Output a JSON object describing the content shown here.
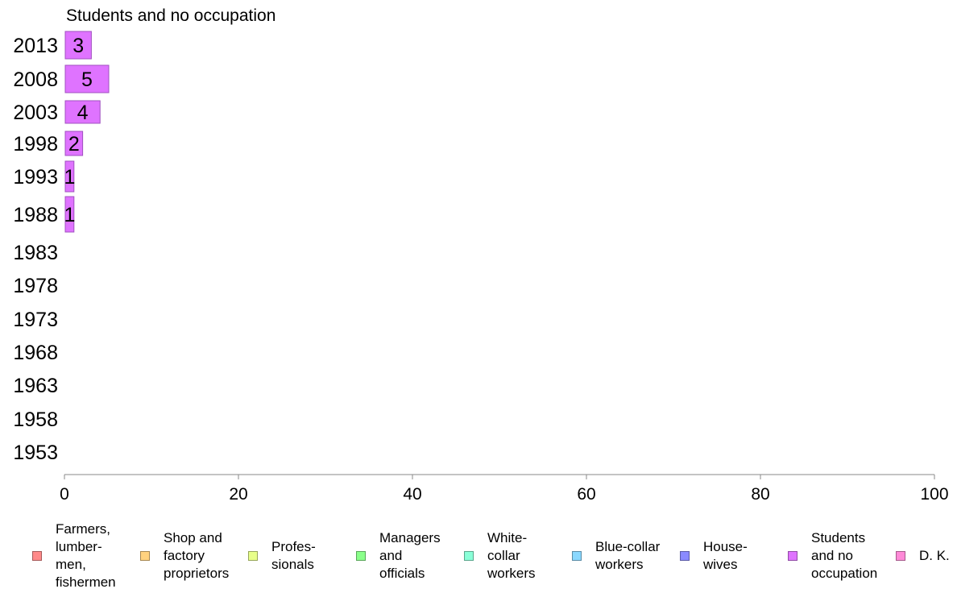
{
  "chart_data": {
    "type": "bar",
    "orientation": "horizontal",
    "title": "Students and no occupation",
    "categories": [
      "2013",
      "2008",
      "2003",
      "1998",
      "1993",
      "1988",
      "1983",
      "1978",
      "1973",
      "1968",
      "1963",
      "1958",
      "1953"
    ],
    "series": [
      {
        "name": "Students and no occupation",
        "color": "#df73ff",
        "values": [
          3,
          5,
          4,
          2,
          1,
          1,
          null,
          null,
          null,
          null,
          null,
          null,
          null
        ]
      }
    ],
    "data_labels": [
      "3",
      "5",
      "4",
      "2",
      "1",
      "1",
      "",
      "",
      "",
      "",
      "",
      "",
      ""
    ],
    "xlim": [
      0,
      100
    ],
    "xticks": [
      0,
      20,
      40,
      60,
      80,
      100
    ],
    "xtick_labels": [
      "0",
      "20",
      "40",
      "60",
      "80",
      "100"
    ],
    "grid": false,
    "legend_position": "bottom"
  },
  "legend": {
    "items": [
      {
        "label": "Farmers,\nlumber-\nmen,\nfishermen",
        "color": "#ff8a8a"
      },
      {
        "label": "Shop and\nfactory\nproprietors",
        "color": "#ffd27f"
      },
      {
        "label": "Profes-\nsionals",
        "color": "#e8ff8a"
      },
      {
        "label": "Managers\nand\nofficials",
        "color": "#8aff8a"
      },
      {
        "label": "White-\ncollar\nworkers",
        "color": "#8affd8"
      },
      {
        "label": "Blue-collar\nworkers",
        "color": "#8ad8ff"
      },
      {
        "label": "House-\nwives",
        "color": "#8a8aff"
      },
      {
        "label": "Students\nand no\noccupation",
        "color": "#df73ff"
      },
      {
        "label": "D. K.",
        "color": "#ff8ad8"
      }
    ]
  }
}
